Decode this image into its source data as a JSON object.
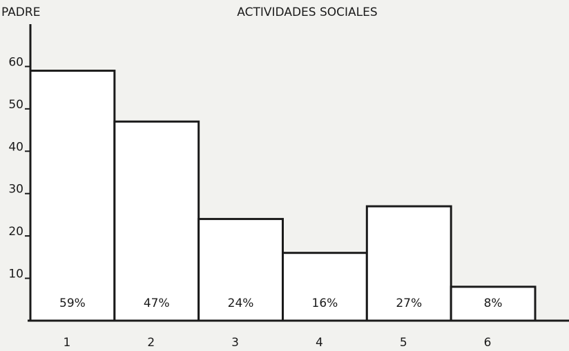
{
  "chart_data": {
    "type": "bar",
    "title": "ACTIVIDADES SOCIALES",
    "y_label": "PADRE",
    "categories": [
      "1",
      "2",
      "3",
      "4",
      "5",
      "6"
    ],
    "values": [
      59,
      47,
      24,
      16,
      27,
      8
    ],
    "value_labels": [
      "59%",
      "47%",
      "24%",
      "16%",
      "27%",
      "8%"
    ],
    "color": "#ffffff",
    "ylim": [
      0,
      70
    ],
    "yticks": [
      10,
      20,
      30,
      40,
      50,
      60
    ],
    "grid": false
  }
}
